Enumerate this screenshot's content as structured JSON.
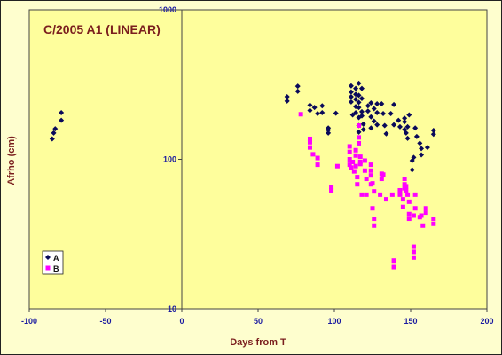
{
  "chart_data": {
    "type": "scatter",
    "title": "C/2005 A1 (LINEAR)",
    "xlabel": "Days from T",
    "ylabel": "Afrho (cm)",
    "xlim": [
      -100,
      200
    ],
    "ylim": [
      10,
      1000
    ],
    "yscale": "log",
    "xticks": [
      -100,
      -50,
      0,
      50,
      100,
      150,
      200
    ],
    "yticks": [
      10,
      100,
      1000
    ],
    "grid": false,
    "legend_position": "bottom-left",
    "colors": {
      "A": "#0a0a5a",
      "B": "#ff00ff",
      "plot_bg": "#fefe9c",
      "outer_bg": "#fefece",
      "text": "#7a1e1e",
      "tick_text": "#1a1aa0"
    },
    "series": [
      {
        "name": "A",
        "marker": "diamond",
        "points": [
          [
            -85,
            137
          ],
          [
            -84,
            150
          ],
          [
            -83,
            160
          ],
          [
            -79,
            182
          ],
          [
            -79,
            205
          ],
          [
            69,
            262
          ],
          [
            69,
            245
          ],
          [
            76,
            308
          ],
          [
            76,
            285
          ],
          [
            84,
            230
          ],
          [
            84,
            212
          ],
          [
            87,
            222
          ],
          [
            89,
            202
          ],
          [
            92,
            228
          ],
          [
            92,
            205
          ],
          [
            96,
            150
          ],
          [
            96,
            157
          ],
          [
            96,
            162
          ],
          [
            101,
            203
          ],
          [
            111,
            310
          ],
          [
            111,
            282
          ],
          [
            111,
            262
          ],
          [
            111,
            242
          ],
          [
            112,
            198
          ],
          [
            114,
            298
          ],
          [
            114,
            272
          ],
          [
            114,
            252
          ],
          [
            114,
            225
          ],
          [
            114,
            205
          ],
          [
            116,
            322
          ],
          [
            116,
            268
          ],
          [
            116,
            240
          ],
          [
            116,
            222
          ],
          [
            116,
            190
          ],
          [
            116,
            168
          ],
          [
            116,
            152
          ],
          [
            118,
            298
          ],
          [
            118,
            255
          ],
          [
            118,
            208
          ],
          [
            118,
            195
          ],
          [
            119,
            172
          ],
          [
            119,
            158
          ],
          [
            122,
            228
          ],
          [
            122,
            210
          ],
          [
            124,
            238
          ],
          [
            124,
            192
          ],
          [
            124,
            162
          ],
          [
            126,
            218
          ],
          [
            126,
            180
          ],
          [
            128,
            235
          ],
          [
            128,
            205
          ],
          [
            128,
            170
          ],
          [
            131,
            235
          ],
          [
            132,
            202
          ],
          [
            133,
            168
          ],
          [
            134,
            148
          ],
          [
            137,
            202
          ],
          [
            139,
            232
          ],
          [
            139,
            170
          ],
          [
            142,
            182
          ],
          [
            143,
            165
          ],
          [
            146,
            188
          ],
          [
            146,
            178
          ],
          [
            146,
            158
          ],
          [
            147,
            150
          ],
          [
            148,
            138
          ],
          [
            148,
            165
          ],
          [
            149,
            198
          ],
          [
            151,
            98
          ],
          [
            151,
            85
          ],
          [
            152,
            103
          ],
          [
            153,
            162
          ],
          [
            154,
            142
          ],
          [
            156,
            128
          ],
          [
            157,
            118
          ],
          [
            157,
            107
          ],
          [
            161,
            120
          ],
          [
            165,
            156
          ],
          [
            165,
            147
          ]
        ]
      },
      {
        "name": "B",
        "marker": "square",
        "points": [
          [
            78,
            200
          ],
          [
            84,
            137
          ],
          [
            84,
            130
          ],
          [
            84,
            120
          ],
          [
            86,
            108
          ],
          [
            89,
            102
          ],
          [
            89,
            92
          ],
          [
            98,
            65
          ],
          [
            98,
            62
          ],
          [
            102,
            90
          ],
          [
            110,
            122
          ],
          [
            110,
            112
          ],
          [
            110,
            100
          ],
          [
            110,
            92
          ],
          [
            111,
            88
          ],
          [
            112,
            96
          ],
          [
            113,
            83
          ],
          [
            114,
            115
          ],
          [
            114,
            106
          ],
          [
            114,
            90
          ],
          [
            115,
            76
          ],
          [
            115,
            68
          ],
          [
            116,
            168
          ],
          [
            116,
            140
          ],
          [
            116,
            128
          ],
          [
            117,
            104
          ],
          [
            117,
            96
          ],
          [
            117,
            93
          ],
          [
            118,
            58
          ],
          [
            120,
            98
          ],
          [
            120,
            84
          ],
          [
            121,
            74
          ],
          [
            121,
            58
          ],
          [
            124,
            92
          ],
          [
            124,
            84
          ],
          [
            124,
            78
          ],
          [
            124,
            68
          ],
          [
            125,
            69
          ],
          [
            125,
            47
          ],
          [
            126,
            61
          ],
          [
            126,
            40
          ],
          [
            126,
            36
          ],
          [
            130,
            58
          ],
          [
            131,
            80
          ],
          [
            131,
            74
          ],
          [
            132,
            79
          ],
          [
            134,
            54
          ],
          [
            138,
            58
          ],
          [
            139,
            21
          ],
          [
            139,
            19
          ],
          [
            143,
            62
          ],
          [
            143,
            58
          ],
          [
            145,
            54
          ],
          [
            145,
            48
          ],
          [
            146,
            74
          ],
          [
            146,
            68
          ],
          [
            146,
            64
          ],
          [
            147,
            66
          ],
          [
            147,
            62
          ],
          [
            148,
            58
          ],
          [
            149,
            52
          ],
          [
            149,
            43
          ],
          [
            149,
            40
          ],
          [
            152,
            42
          ],
          [
            152,
            26
          ],
          [
            152,
            24
          ],
          [
            152,
            22
          ],
          [
            153,
            58
          ],
          [
            153,
            47
          ],
          [
            156,
            41
          ],
          [
            157,
            42
          ],
          [
            158,
            36
          ],
          [
            160,
            47
          ],
          [
            160,
            44
          ],
          [
            165,
            40
          ],
          [
            165,
            37
          ]
        ]
      }
    ]
  }
}
